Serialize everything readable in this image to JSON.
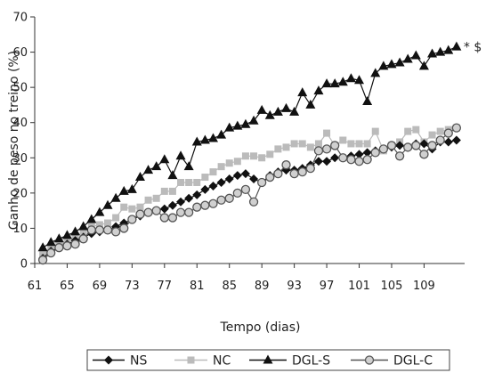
{
  "chart_data": {
    "type": "line",
    "xlabel": "Tempo (dias)",
    "ylabel": "Ganho de peso no treino (%)",
    "xlim": [
      61,
      114
    ],
    "ylim": [
      0,
      70
    ],
    "xticks": [
      61,
      65,
      69,
      73,
      77,
      81,
      85,
      89,
      93,
      97,
      101,
      105,
      109
    ],
    "yticks": [
      0,
      10,
      20,
      30,
      40,
      50,
      60,
      70
    ],
    "grid": false,
    "legend_position": "bottom",
    "annotation": "* $",
    "x": [
      62,
      63,
      64,
      65,
      66,
      67,
      68,
      69,
      70,
      71,
      72,
      73,
      74,
      75,
      76,
      77,
      78,
      79,
      80,
      81,
      82,
      83,
      84,
      85,
      86,
      87,
      88,
      89,
      90,
      91,
      92,
      93,
      94,
      95,
      96,
      97,
      98,
      99,
      100,
      101,
      102,
      103,
      104,
      105,
      106,
      107,
      108,
      109,
      110,
      111,
      112,
      113
    ],
    "series": [
      {
        "name": "NS",
        "color": "#111111",
        "marker": "diamond",
        "values": [
          1.5,
          3.5,
          4.5,
          5.5,
          6.5,
          7.5,
          8.5,
          9.0,
          9.5,
          10.5,
          11.5,
          12.5,
          13.5,
          14.5,
          15.0,
          15.5,
          16.5,
          17.5,
          18.5,
          19.5,
          21.0,
          22.0,
          23.0,
          24.0,
          25.0,
          25.5,
          24.0,
          23.0,
          25.0,
          26.0,
          26.5,
          26.5,
          27.0,
          28.0,
          29.0,
          29.0,
          30.0,
          30.0,
          30.5,
          31.0,
          31.5,
          32.0,
          32.5,
          33.0,
          33.5,
          33.0,
          34.0,
          34.0,
          32.5,
          34.5,
          34.5,
          35.0
        ]
      },
      {
        "name": "NC",
        "color": "#bbbbbb",
        "marker": "square",
        "values": [
          2.5,
          4.0,
          5.0,
          6.5,
          7.5,
          9.0,
          10.5,
          11.0,
          11.5,
          13.0,
          16.0,
          15.5,
          16.0,
          18.0,
          18.5,
          20.5,
          20.5,
          23.0,
          23.0,
          23.0,
          24.5,
          26.0,
          27.5,
          28.5,
          29.0,
          30.5,
          30.5,
          30.0,
          31.0,
          32.5,
          33.0,
          34.0,
          34.0,
          33.0,
          34.0,
          37.0,
          33.5,
          35.0,
          34.0,
          34.0,
          34.0,
          37.5,
          32.0,
          33.5,
          34.5,
          37.5,
          38.0,
          34.5,
          36.5,
          37.5,
          38.0,
          38.5
        ]
      },
      {
        "name": "DGL-S",
        "color": "#111111",
        "marker": "triangle",
        "values": [
          4.5,
          6.0,
          7.0,
          8.0,
          9.0,
          10.5,
          12.5,
          14.5,
          16.5,
          18.5,
          20.5,
          21.0,
          24.5,
          26.5,
          27.5,
          29.5,
          25.0,
          30.5,
          27.5,
          34.5,
          35.0,
          35.5,
          36.5,
          38.5,
          39.0,
          39.5,
          40.5,
          43.5,
          42.0,
          43.0,
          44.0,
          43.0,
          48.5,
          45.0,
          49.0,
          51.0,
          51.0,
          51.5,
          52.5,
          52.0,
          46.0,
          54.0,
          56.0,
          56.5,
          57.0,
          58.0,
          59.0,
          56.0,
          59.5,
          60.0,
          60.5,
          61.5
        ]
      },
      {
        "name": "DGL-C",
        "color": "#555555",
        "marker": "circle",
        "values": [
          1.0,
          3.0,
          4.5,
          5.0,
          5.5,
          7.0,
          9.5,
          9.5,
          9.5,
          9.0,
          10.0,
          12.5,
          14.0,
          14.5,
          15.0,
          13.0,
          13.0,
          14.5,
          14.5,
          16.0,
          16.5,
          17.0,
          18.0,
          18.5,
          20.0,
          21.0,
          17.5,
          23.0,
          24.5,
          25.5,
          28.0,
          25.5,
          26.0,
          27.0,
          32.0,
          32.5,
          33.5,
          30.0,
          29.5,
          29.0,
          29.5,
          31.5,
          32.5,
          33.5,
          30.5,
          33.0,
          33.5,
          31.0,
          33.5,
          35.0,
          37.0,
          38.5
        ]
      }
    ]
  }
}
